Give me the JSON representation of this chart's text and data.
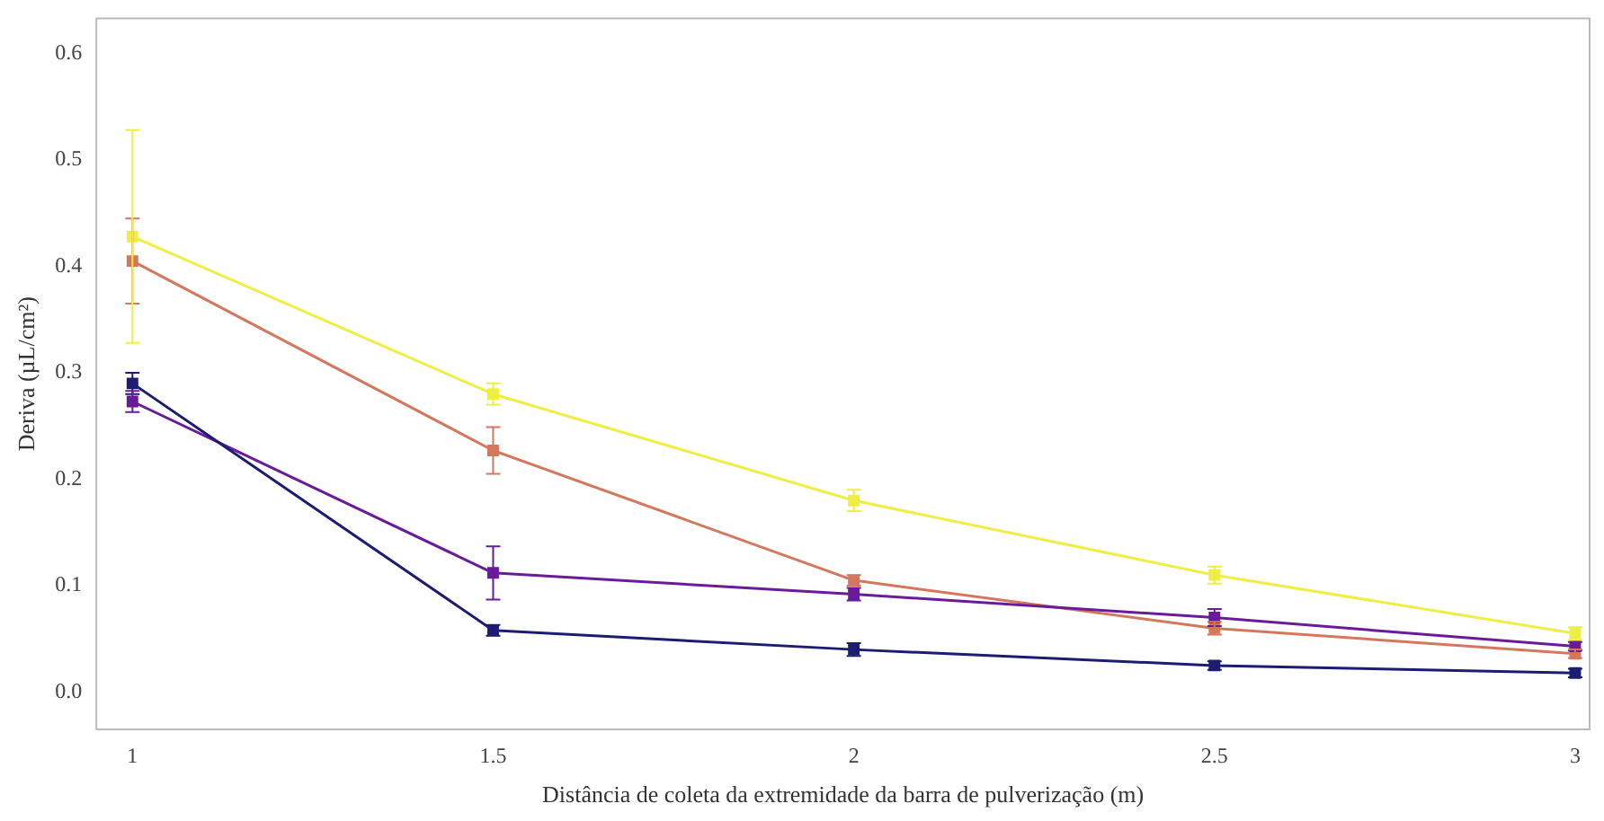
{
  "chart_data": {
    "type": "line",
    "xlabel": "Distância de coleta da extremidade da barra de pulverização (m)",
    "ylabel": "Deriva (µL/cm²)",
    "x": [
      1,
      1.5,
      2,
      2.5,
      3
    ],
    "series": [
      {
        "color": "#1c1c72",
        "values": [
          0.29,
          0.058,
          0.04,
          0.025,
          0.018
        ],
        "errors": [
          0.01,
          0.005,
          0.006,
          0.004,
          0.004
        ]
      },
      {
        "color": "#6a1b9a",
        "values": [
          0.273,
          0.112,
          0.092,
          0.07,
          0.043
        ],
        "errors": [
          0.01,
          0.025,
          0.006,
          0.008,
          0.004
        ]
      },
      {
        "color": "#d4775c",
        "values": [
          0.405,
          0.227,
          0.105,
          0.06,
          0.036
        ],
        "errors": [
          0.04,
          0.022,
          0.005,
          0.006,
          0.004
        ]
      },
      {
        "color": "#eeee44",
        "values": [
          0.428,
          0.28,
          0.18,
          0.11,
          0.055
        ],
        "errors": [
          0.1,
          0.01,
          0.01,
          0.008,
          0.006
        ]
      }
    ],
    "xlim": [
      0.95,
      3.02
    ],
    "xticks": [
      1,
      1.5,
      2,
      2.5,
      3
    ],
    "ylim": [
      -0.035,
      0.633
    ],
    "yticks": [
      {
        "value": 0,
        "label": "0.0"
      },
      0.1,
      0.2,
      0.3,
      0.4,
      0.5,
      0.6
    ],
    "grid": false,
    "legend": false,
    "marker": "square",
    "line_style": "solid"
  }
}
